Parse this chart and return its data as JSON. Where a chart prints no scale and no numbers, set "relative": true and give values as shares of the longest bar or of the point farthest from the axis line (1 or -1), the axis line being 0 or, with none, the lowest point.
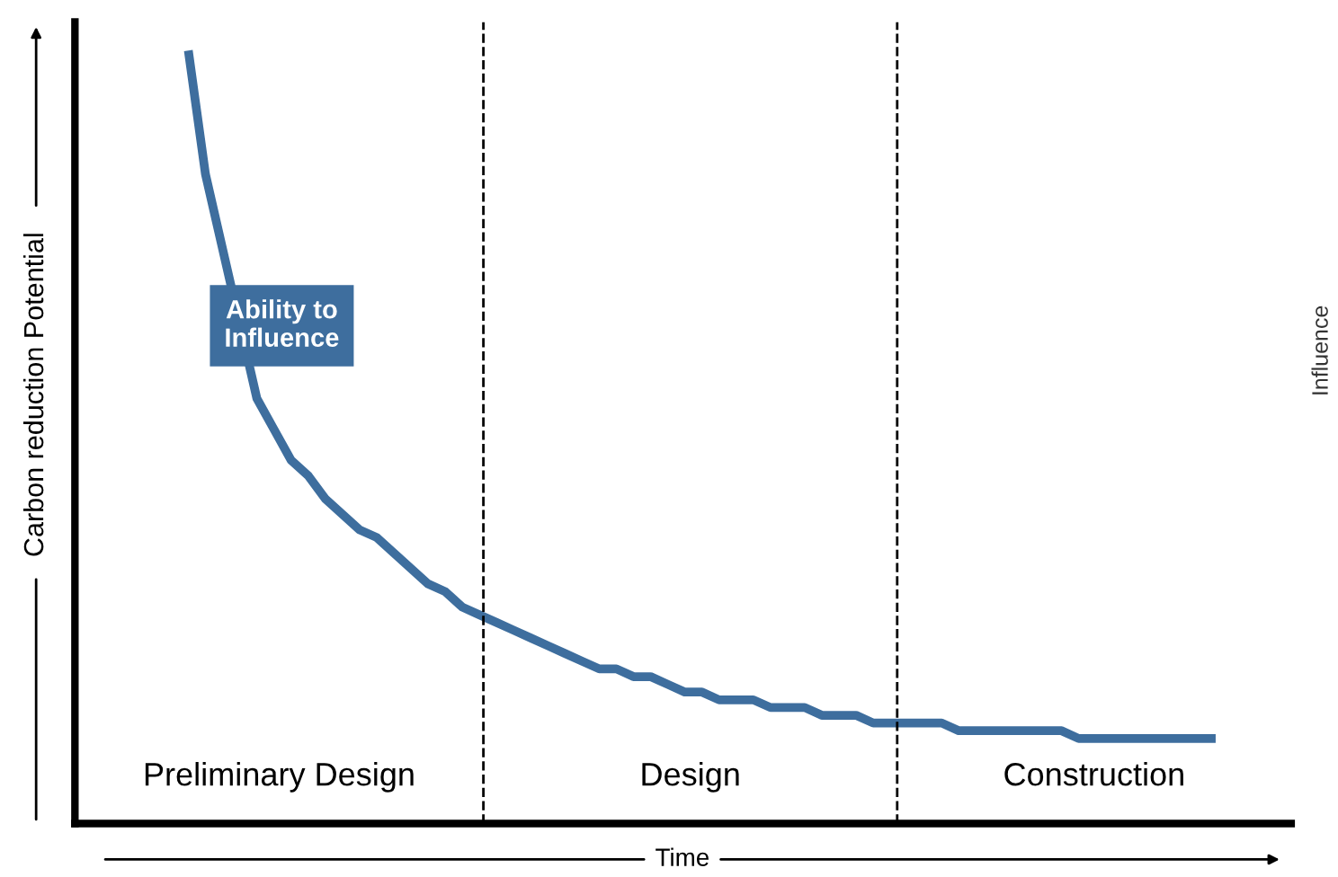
{
  "chart_data": {
    "type": "line",
    "relative": true,
    "xlabel": "Time",
    "ylabel": "Carbon reduction Potential",
    "categories": [
      null,
      null,
      null,
      null,
      null,
      null,
      null,
      null,
      null,
      null,
      null,
      null,
      null,
      null,
      null,
      null,
      null,
      null,
      null,
      null,
      null,
      null,
      null,
      null,
      null,
      null,
      null,
      null,
      null,
      null,
      null,
      null,
      null,
      null,
      null,
      null,
      null,
      null,
      null,
      null,
      null,
      null,
      null,
      null,
      null,
      null,
      null,
      null,
      null,
      null,
      null,
      null,
      null,
      null,
      null,
      null,
      null,
      null,
      null,
      null,
      null
    ],
    "series": [
      {
        "name": "Ability to Influence",
        "color": "#3e6e9e",
        "values": [
          1.0,
          0.84,
          null,
          null,
          0.55,
          0.51,
          0.47,
          0.45,
          0.42,
          0.4,
          0.38,
          0.37,
          0.35,
          0.33,
          0.31,
          0.3,
          0.28,
          0.27,
          0.26,
          0.25,
          0.24,
          0.23,
          0.22,
          0.21,
          0.2,
          0.2,
          0.19,
          0.19,
          0.18,
          0.17,
          0.17,
          0.16,
          0.16,
          0.16,
          0.15,
          0.15,
          0.15,
          0.14,
          0.14,
          0.14,
          0.13,
          0.13,
          0.13,
          0.13,
          0.13,
          0.12,
          0.12,
          0.12,
          0.12,
          0.12,
          0.12,
          0.12,
          0.11,
          0.11,
          0.11,
          0.11,
          0.11,
          0.11,
          0.11,
          0.11,
          0.11
        ]
      }
    ],
    "annotations": [
      "Preliminary Design",
      "Design",
      "Construction",
      "Influence"
    ],
    "legend": false,
    "marker": "none",
    "line_style": "solid"
  }
}
